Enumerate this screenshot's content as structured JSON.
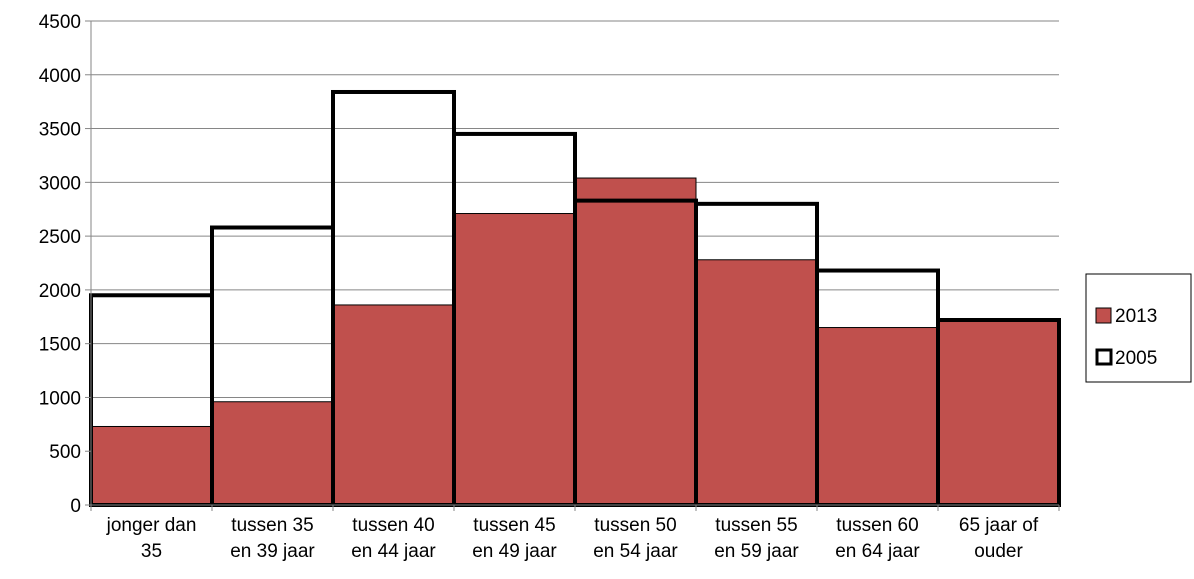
{
  "chart_data": {
    "type": "bar",
    "categories": [
      "jonger dan 35",
      "tussen 35 en 39 jaar",
      "tussen 40 en 44 jaar",
      "tussen 45 en 49 jaar",
      "tussen 50 en 54 jaar",
      "tussen 55 en 59 jaar",
      "tussen 60 en 64 jaar",
      "65 jaar of ouder"
    ],
    "category_lines": [
      [
        "jonger dan",
        "35"
      ],
      [
        "tussen 35",
        "en 39 jaar"
      ],
      [
        "tussen 40",
        "en 44 jaar"
      ],
      [
        "tussen 45",
        "en 49 jaar"
      ],
      [
        "tussen 50",
        "en 54 jaar"
      ],
      [
        "tussen 55",
        "en 59 jaar"
      ],
      [
        "tussen 60",
        "en 64 jaar"
      ],
      [
        "65 jaar of",
        "ouder"
      ]
    ],
    "series": [
      {
        "name": "2013",
        "style": "filled",
        "color": "#c0504d",
        "values": [
          730,
          960,
          1860,
          2710,
          3040,
          2280,
          1650,
          1720
        ]
      },
      {
        "name": "2005",
        "style": "outline",
        "color": "#000000",
        "values": [
          1950,
          2580,
          3840,
          3450,
          2830,
          2800,
          2180,
          1720
        ]
      }
    ],
    "ylim": [
      0,
      4500
    ],
    "yticks": [
      0,
      500,
      1000,
      1500,
      2000,
      2500,
      3000,
      3500,
      4000,
      4500
    ],
    "grid": true,
    "legend_position": "right",
    "title": "",
    "xlabel": "",
    "ylabel": ""
  }
}
